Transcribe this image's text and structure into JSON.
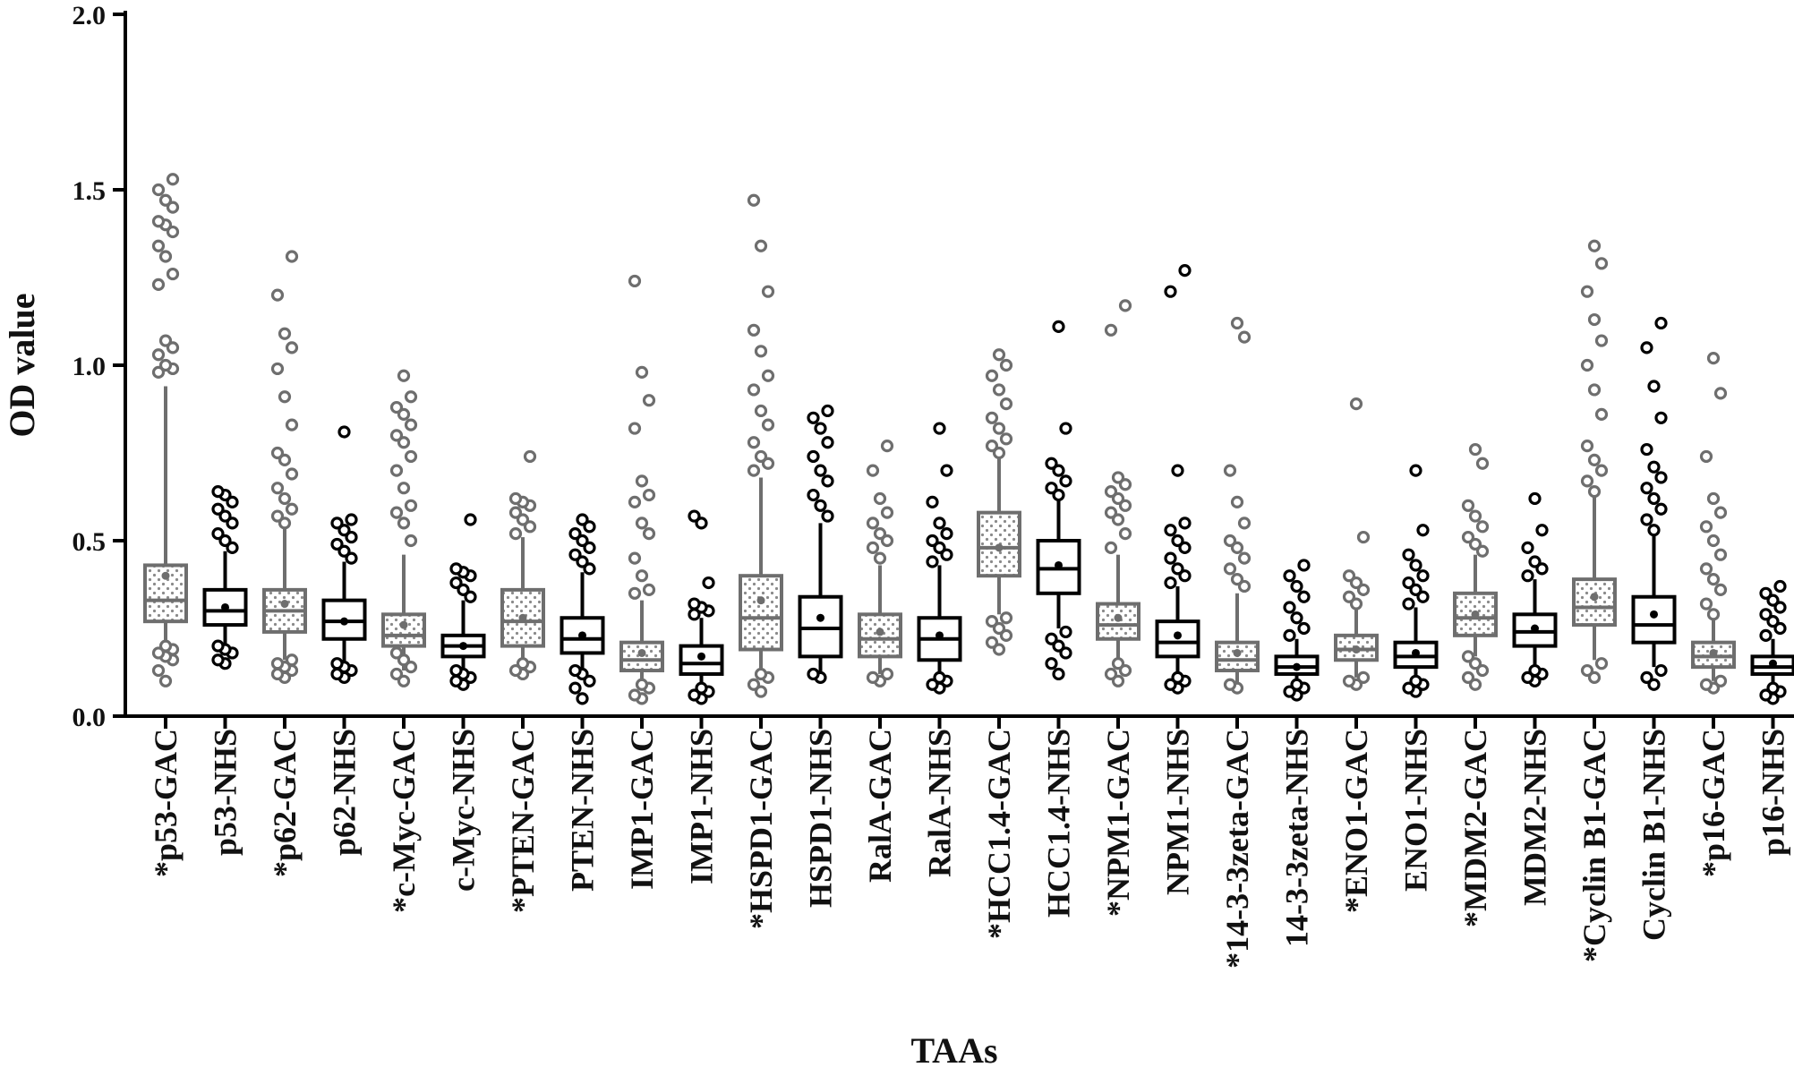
{
  "chart_data": {
    "type": "box",
    "xlabel": "TAAs",
    "ylabel": "OD value",
    "ylim": [
      0.0,
      2.0
    ],
    "yticks": [
      "0.0",
      "0.5",
      "1.0",
      "1.5",
      "2.0"
    ],
    "colors": {
      "GAC": "#6e6e6e",
      "NHS": "#000000"
    },
    "categories": [
      "*p53-GAC",
      "p53-NHS",
      "*p62-GAC",
      "p62-NHS",
      "*c-Myc-GAC",
      "c-Myc-NHS",
      "*PTEN-GAC",
      "PTEN-NHS",
      "IMP1-GAC",
      "IMP1-NHS",
      "*HSPD1-GAC",
      "HSPD1-NHS",
      "RalA-GAC",
      "RalA-NHS",
      "*HCC1.4-GAC",
      "HCC1.4-NHS",
      "*NPM1-GAC",
      "NPM1-NHS",
      "*14-3-3zeta-GAC",
      "14-3-3zeta-NHS",
      "*ENO1-GAC",
      "ENO1-NHS",
      "*MDM2-GAC",
      "MDM2-NHS",
      "*Cyclin B1-GAC",
      "Cyclin B1-NHS",
      "*p16-GAC",
      "p16-NHS"
    ],
    "boxes": [
      {
        "group": "GAC",
        "q1": 0.27,
        "median": 0.33,
        "q3": 0.43,
        "mean": 0.4,
        "whisker_low": 0.2,
        "whisker_high": 0.94,
        "outliers": [
          0.1,
          0.13,
          0.16,
          0.17,
          0.18,
          0.19,
          0.2,
          0.98,
          0.99,
          1.0,
          1.03,
          1.05,
          1.07,
          1.23,
          1.26,
          1.31,
          1.34,
          1.38,
          1.4,
          1.41,
          1.45,
          1.47,
          1.5,
          1.53
        ]
      },
      {
        "group": "NHS",
        "q1": 0.26,
        "median": 0.3,
        "q3": 0.36,
        "mean": 0.31,
        "whisker_low": 0.18,
        "whisker_high": 0.47,
        "outliers": [
          0.15,
          0.16,
          0.18,
          0.19,
          0.2,
          0.48,
          0.5,
          0.52,
          0.55,
          0.57,
          0.59,
          0.61,
          0.63,
          0.64
        ]
      },
      {
        "group": "GAC",
        "q1": 0.24,
        "median": 0.3,
        "q3": 0.36,
        "mean": 0.32,
        "whisker_low": 0.16,
        "whisker_high": 0.54,
        "outliers": [
          0.11,
          0.12,
          0.13,
          0.14,
          0.15,
          0.16,
          0.55,
          0.57,
          0.59,
          0.62,
          0.65,
          0.69,
          0.73,
          0.75,
          0.83,
          0.91,
          0.99,
          1.05,
          1.09,
          1.2,
          1.31
        ]
      },
      {
        "group": "NHS",
        "q1": 0.22,
        "median": 0.27,
        "q3": 0.33,
        "mean": 0.27,
        "whisker_low": 0.14,
        "whisker_high": 0.44,
        "outliers": [
          0.11,
          0.12,
          0.13,
          0.14,
          0.15,
          0.45,
          0.47,
          0.49,
          0.51,
          0.53,
          0.55,
          0.56,
          0.81
        ]
      },
      {
        "group": "GAC",
        "q1": 0.2,
        "median": 0.23,
        "q3": 0.29,
        "mean": 0.26,
        "whisker_low": 0.13,
        "whisker_high": 0.46,
        "outliers": [
          0.1,
          0.12,
          0.14,
          0.16,
          0.18,
          0.5,
          0.55,
          0.58,
          0.6,
          0.65,
          0.7,
          0.74,
          0.78,
          0.8,
          0.83,
          0.86,
          0.88,
          0.91,
          0.97
        ]
      },
      {
        "group": "NHS",
        "q1": 0.17,
        "median": 0.2,
        "q3": 0.23,
        "mean": 0.2,
        "whisker_low": 0.12,
        "whisker_high": 0.33,
        "outliers": [
          0.09,
          0.1,
          0.11,
          0.12,
          0.13,
          0.34,
          0.36,
          0.38,
          0.4,
          0.41,
          0.42,
          0.56
        ]
      },
      {
        "group": "GAC",
        "q1": 0.2,
        "median": 0.27,
        "q3": 0.36,
        "mean": 0.28,
        "whisker_low": 0.14,
        "whisker_high": 0.51,
        "outliers": [
          0.12,
          0.13,
          0.14,
          0.15,
          0.52,
          0.54,
          0.56,
          0.58,
          0.6,
          0.61,
          0.62,
          0.74
        ]
      },
      {
        "group": "NHS",
        "q1": 0.18,
        "median": 0.22,
        "q3": 0.28,
        "mean": 0.23,
        "whisker_low": 0.11,
        "whisker_high": 0.41,
        "outliers": [
          0.05,
          0.08,
          0.1,
          0.12,
          0.13,
          0.42,
          0.44,
          0.46,
          0.48,
          0.5,
          0.52,
          0.54,
          0.56
        ]
      },
      {
        "group": "GAC",
        "q1": 0.13,
        "median": 0.16,
        "q3": 0.21,
        "mean": 0.18,
        "whisker_low": 0.1,
        "whisker_high": 0.33,
        "outliers": [
          0.05,
          0.06,
          0.08,
          0.09,
          0.35,
          0.36,
          0.4,
          0.45,
          0.52,
          0.55,
          0.61,
          0.63,
          0.67,
          0.82,
          0.9,
          0.98,
          1.24
        ]
      },
      {
        "group": "NHS",
        "q1": 0.12,
        "median": 0.15,
        "q3": 0.2,
        "mean": 0.17,
        "whisker_low": 0.09,
        "whisker_high": 0.28,
        "outliers": [
          0.05,
          0.06,
          0.07,
          0.08,
          0.29,
          0.3,
          0.31,
          0.32,
          0.38,
          0.55,
          0.57
        ]
      },
      {
        "group": "GAC",
        "q1": 0.19,
        "median": 0.28,
        "q3": 0.4,
        "mean": 0.33,
        "whisker_low": 0.13,
        "whisker_high": 0.68,
        "outliers": [
          0.07,
          0.09,
          0.11,
          0.12,
          0.7,
          0.72,
          0.74,
          0.78,
          0.83,
          0.87,
          0.93,
          0.97,
          1.04,
          1.1,
          1.21,
          1.34,
          1.47
        ]
      },
      {
        "group": "NHS",
        "q1": 0.17,
        "median": 0.25,
        "q3": 0.34,
        "mean": 0.28,
        "whisker_low": 0.12,
        "whisker_high": 0.55,
        "outliers": [
          0.11,
          0.12,
          0.57,
          0.6,
          0.63,
          0.67,
          0.7,
          0.74,
          0.78,
          0.82,
          0.85,
          0.87
        ]
      },
      {
        "group": "GAC",
        "q1": 0.17,
        "median": 0.22,
        "q3": 0.29,
        "mean": 0.24,
        "whisker_low": 0.12,
        "whisker_high": 0.43,
        "outliers": [
          0.1,
          0.11,
          0.12,
          0.45,
          0.48,
          0.5,
          0.52,
          0.55,
          0.58,
          0.62,
          0.7,
          0.77
        ]
      },
      {
        "group": "NHS",
        "q1": 0.16,
        "median": 0.22,
        "q3": 0.28,
        "mean": 0.23,
        "whisker_low": 0.11,
        "whisker_high": 0.43,
        "outliers": [
          0.08,
          0.09,
          0.1,
          0.11,
          0.44,
          0.46,
          0.48,
          0.5,
          0.52,
          0.55,
          0.61,
          0.7,
          0.82
        ]
      },
      {
        "group": "GAC",
        "q1": 0.4,
        "median": 0.48,
        "q3": 0.58,
        "mean": 0.48,
        "whisker_low": 0.29,
        "whisker_high": 0.74,
        "outliers": [
          0.19,
          0.21,
          0.23,
          0.25,
          0.27,
          0.28,
          0.75,
          0.77,
          0.79,
          0.82,
          0.85,
          0.89,
          0.93,
          0.97,
          1.0,
          1.03
        ]
      },
      {
        "group": "NHS",
        "q1": 0.35,
        "median": 0.42,
        "q3": 0.5,
        "mean": 0.43,
        "whisker_low": 0.25,
        "whisker_high": 0.62,
        "outliers": [
          0.12,
          0.15,
          0.18,
          0.2,
          0.22,
          0.24,
          0.63,
          0.65,
          0.67,
          0.7,
          0.72,
          0.82,
          1.11
        ]
      },
      {
        "group": "GAC",
        "q1": 0.22,
        "median": 0.26,
        "q3": 0.32,
        "mean": 0.28,
        "whisker_low": 0.15,
        "whisker_high": 0.46,
        "outliers": [
          0.1,
          0.12,
          0.13,
          0.15,
          0.48,
          0.52,
          0.56,
          0.58,
          0.6,
          0.62,
          0.64,
          0.66,
          0.68,
          1.1,
          1.17
        ]
      },
      {
        "group": "NHS",
        "q1": 0.17,
        "median": 0.21,
        "q3": 0.27,
        "mean": 0.23,
        "whisker_low": 0.11,
        "whisker_high": 0.37,
        "outliers": [
          0.08,
          0.09,
          0.1,
          0.11,
          0.38,
          0.4,
          0.42,
          0.45,
          0.48,
          0.5,
          0.53,
          0.55,
          0.7,
          1.21,
          1.27
        ]
      },
      {
        "group": "GAC",
        "q1": 0.13,
        "median": 0.16,
        "q3": 0.21,
        "mean": 0.18,
        "whisker_low": 0.09,
        "whisker_high": 0.35,
        "outliers": [
          0.08,
          0.09,
          0.37,
          0.39,
          0.42,
          0.45,
          0.48,
          0.5,
          0.55,
          0.61,
          0.7,
          1.08,
          1.12
        ]
      },
      {
        "group": "NHS",
        "q1": 0.12,
        "median": 0.14,
        "q3": 0.17,
        "mean": 0.14,
        "whisker_low": 0.09,
        "whisker_high": 0.22,
        "outliers": [
          0.06,
          0.07,
          0.08,
          0.09,
          0.23,
          0.25,
          0.28,
          0.31,
          0.34,
          0.37,
          0.4,
          0.43
        ]
      },
      {
        "group": "GAC",
        "q1": 0.16,
        "median": 0.19,
        "q3": 0.23,
        "mean": 0.19,
        "whisker_low": 0.11,
        "whisker_high": 0.31,
        "outliers": [
          0.09,
          0.1,
          0.11,
          0.32,
          0.34,
          0.36,
          0.38,
          0.4,
          0.51,
          0.89
        ]
      },
      {
        "group": "NHS",
        "q1": 0.14,
        "median": 0.17,
        "q3": 0.21,
        "mean": 0.18,
        "whisker_low": 0.1,
        "whisker_high": 0.31,
        "outliers": [
          0.07,
          0.08,
          0.09,
          0.1,
          0.32,
          0.34,
          0.36,
          0.38,
          0.4,
          0.43,
          0.46,
          0.53,
          0.7
        ]
      },
      {
        "group": "GAC",
        "q1": 0.23,
        "median": 0.28,
        "q3": 0.35,
        "mean": 0.29,
        "whisker_low": 0.17,
        "whisker_high": 0.46,
        "outliers": [
          0.09,
          0.11,
          0.13,
          0.15,
          0.17,
          0.47,
          0.49,
          0.51,
          0.54,
          0.57,
          0.6,
          0.72,
          0.76
        ]
      },
      {
        "group": "NHS",
        "q1": 0.2,
        "median": 0.24,
        "q3": 0.29,
        "mean": 0.25,
        "whisker_low": 0.13,
        "whisker_high": 0.39,
        "outliers": [
          0.1,
          0.11,
          0.12,
          0.13,
          0.4,
          0.42,
          0.44,
          0.48,
          0.53,
          0.62
        ]
      },
      {
        "group": "GAC",
        "q1": 0.26,
        "median": 0.31,
        "q3": 0.39,
        "mean": 0.34,
        "whisker_low": 0.16,
        "whisker_high": 0.63,
        "outliers": [
          0.11,
          0.13,
          0.15,
          0.64,
          0.67,
          0.7,
          0.73,
          0.77,
          0.86,
          0.93,
          1.0,
          1.07,
          1.13,
          1.21,
          1.29,
          1.34
        ]
      },
      {
        "group": "NHS",
        "q1": 0.21,
        "median": 0.26,
        "q3": 0.34,
        "mean": 0.29,
        "whisker_low": 0.14,
        "whisker_high": 0.52,
        "outliers": [
          0.09,
          0.11,
          0.13,
          0.53,
          0.56,
          0.59,
          0.62,
          0.65,
          0.68,
          0.71,
          0.76,
          0.85,
          0.94,
          1.05,
          1.12
        ]
      },
      {
        "group": "GAC",
        "q1": 0.14,
        "median": 0.17,
        "q3": 0.21,
        "mean": 0.18,
        "whisker_low": 0.1,
        "whisker_high": 0.28,
        "outliers": [
          0.08,
          0.09,
          0.1,
          0.29,
          0.32,
          0.36,
          0.39,
          0.42,
          0.46,
          0.5,
          0.54,
          0.58,
          0.62,
          0.74,
          0.92,
          1.02
        ]
      },
      {
        "group": "NHS",
        "q1": 0.12,
        "median": 0.14,
        "q3": 0.17,
        "mean": 0.15,
        "whisker_low": 0.09,
        "whisker_high": 0.22,
        "outliers": [
          0.05,
          0.06,
          0.07,
          0.08,
          0.23,
          0.25,
          0.27,
          0.29,
          0.31,
          0.33,
          0.35,
          0.37
        ]
      }
    ]
  }
}
